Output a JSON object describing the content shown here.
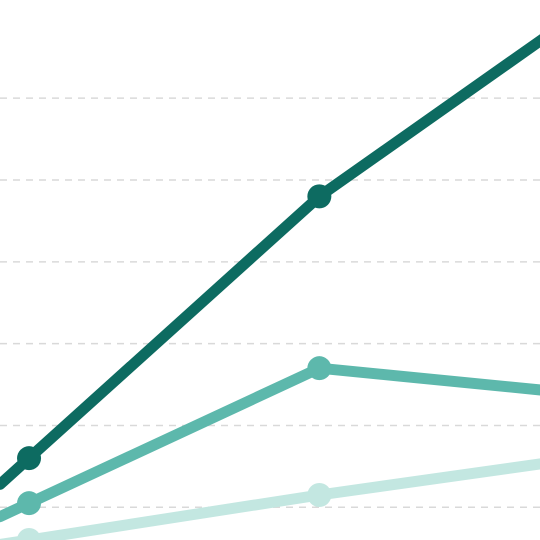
{
  "colors": {
    "background": "#ffffff",
    "grid": "#d9d9d9"
  },
  "chart_data": {
    "type": "line",
    "grid": true,
    "gridline_values": [
      1,
      2,
      3,
      4,
      5,
      6
    ],
    "ylim": [
      0.6,
      7.2
    ],
    "x": [
      1,
      2,
      3
    ],
    "xlim": [
      0.9,
      2.76
    ],
    "series": [
      {
        "color": "#0d6b61",
        "values": [
          1.6,
          4.8,
          7.3
        ]
      },
      {
        "color": "#5db8ac",
        "values": [
          1.05,
          2.7,
          2.35
        ]
      },
      {
        "color": "#c3e7e1",
        "values": [
          0.6,
          1.15,
          1.65
        ]
      }
    ]
  }
}
